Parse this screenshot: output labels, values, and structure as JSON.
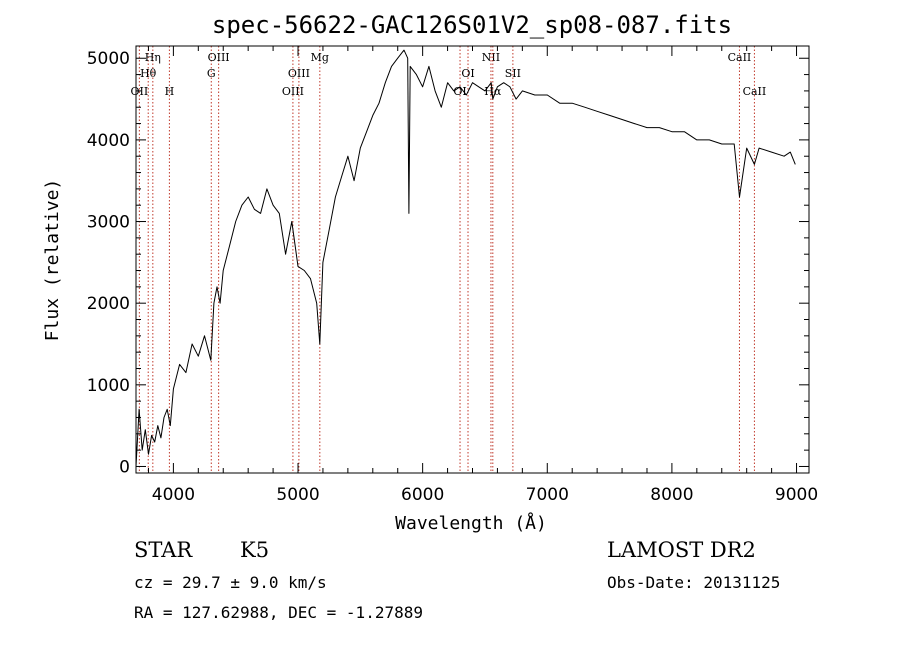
{
  "chart_data": {
    "type": "line",
    "title": "spec-56622-GAC126S01V2_sp08-087.fits",
    "xlabel": "Wavelength (Å)",
    "ylabel": "Flux (relative)",
    "xlim": [
      3700,
      9100
    ],
    "ylim": [
      -80,
      5150
    ],
    "x_ticks": [
      4000,
      5000,
      6000,
      7000,
      8000,
      9000
    ],
    "y_ticks": [
      0,
      1000,
      2000,
      3000,
      4000,
      5000
    ],
    "x_tick_labels": [
      "4000",
      "5000",
      "6000",
      "7000",
      "8000",
      "9000"
    ],
    "y_tick_labels": [
      "0",
      "1000",
      "2000",
      "3000",
      "4000",
      "5000"
    ],
    "grid": false,
    "series": [
      {
        "name": "spectrum",
        "x": [
          3700,
          3725,
          3750,
          3775,
          3800,
          3825,
          3850,
          3875,
          3900,
          3925,
          3950,
          3975,
          4000,
          4050,
          4100,
          4150,
          4200,
          4250,
          4300,
          4325,
          4350,
          4375,
          4400,
          4450,
          4500,
          4550,
          4600,
          4650,
          4700,
          4750,
          4800,
          4850,
          4900,
          4950,
          5000,
          5050,
          5100,
          5150,
          5175,
          5200,
          5250,
          5300,
          5350,
          5400,
          5450,
          5500,
          5550,
          5600,
          5650,
          5700,
          5750,
          5800,
          5850,
          5880,
          5890,
          5900,
          5950,
          6000,
          6050,
          6100,
          6150,
          6200,
          6250,
          6300,
          6350,
          6400,
          6450,
          6500,
          6550,
          6563,
          6600,
          6650,
          6700,
          6750,
          6800,
          6900,
          7000,
          7100,
          7200,
          7300,
          7400,
          7500,
          7600,
          7700,
          7800,
          7900,
          8000,
          8100,
          8200,
          8300,
          8400,
          8500,
          8542,
          8600,
          8662,
          8700,
          8800,
          8900,
          8950,
          8990
        ],
        "y": [
          0,
          700,
          200,
          450,
          150,
          380,
          300,
          500,
          350,
          600,
          700,
          500,
          950,
          1250,
          1150,
          1500,
          1350,
          1600,
          1300,
          2000,
          2200,
          2000,
          2400,
          2700,
          3000,
          3200,
          3300,
          3150,
          3100,
          3400,
          3200,
          3100,
          2600,
          3000,
          2450,
          2400,
          2300,
          2000,
          1500,
          2500,
          2900,
          3300,
          3550,
          3800,
          3500,
          3900,
          4100,
          4300,
          4450,
          4700,
          4900,
          5000,
          5100,
          5000,
          3100,
          4900,
          4800,
          4650,
          4900,
          4600,
          4400,
          4700,
          4600,
          4650,
          4550,
          4700,
          4650,
          4600,
          4700,
          4500,
          4650,
          4700,
          4650,
          4500,
          4600,
          4550,
          4550,
          4450,
          4450,
          4400,
          4350,
          4300,
          4250,
          4200,
          4150,
          4150,
          4100,
          4100,
          4000,
          4000,
          3950,
          3950,
          3300,
          3900,
          3700,
          3900,
          3850,
          3800,
          3850,
          3700
        ]
      }
    ],
    "line_markers": [
      {
        "name": "OII",
        "x": 3727,
        "row": 3
      },
      {
        "name": "Hθ",
        "x": 3798,
        "row": 2
      },
      {
        "name": "Hη",
        "x": 3835,
        "row": 1
      },
      {
        "name": "H",
        "x": 3968,
        "row": 3
      },
      {
        "name": "G",
        "x": 4304,
        "row": 2
      },
      {
        "name": "OIII",
        "x": 4363,
        "row": 1
      },
      {
        "name": "OIII",
        "x": 4959,
        "row": 3
      },
      {
        "name": "OIII",
        "x": 5007,
        "row": 2
      },
      {
        "name": "Mg",
        "x": 5175,
        "row": 1
      },
      {
        "name": "OI",
        "x": 6300,
        "row": 3
      },
      {
        "name": "OI",
        "x": 6364,
        "row": 2
      },
      {
        "name": "NII",
        "x": 6548,
        "row": 1
      },
      {
        "name": "Hα",
        "x": 6563,
        "row": 3
      },
      {
        "name": "SII",
        "x": 6724,
        "row": 2
      },
      {
        "name": "CaII",
        "x": 8542,
        "row": 1
      },
      {
        "name": "CaII",
        "x": 8662,
        "row": 3
      }
    ]
  },
  "info": {
    "class": "STAR",
    "subclass": "K5",
    "survey": "LAMOST DR2",
    "cz": "cz = 29.7 ± 9.0 km/s",
    "obs_date": "Obs-Date: 20131125",
    "coords": "RA = 127.62988, DEC =  -1.27889"
  }
}
